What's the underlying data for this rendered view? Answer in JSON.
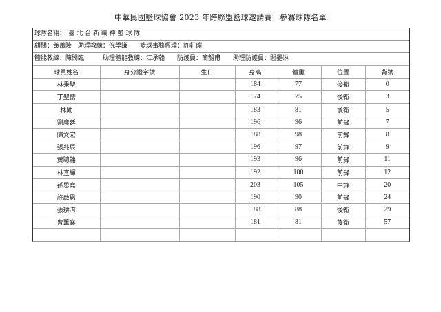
{
  "title": "中華民國籃球協會 2023 年跨聯盟籃球邀請賽　參賽球隊名單",
  "team_line": "球隊名稱：　臺 北 台 新 戰 神 籃 球 隊",
  "staff_line1": "顧問：黃萬隆　助理教練：倪學謙　　籃球事務經理：許軒瑜",
  "staff_line2": "體能教練：陳閔臨　　　助理體能教練：江承翰　　防護員：簡韶甫　　助理防護員：閻晏淋",
  "headers": [
    "球員姓名",
    "身分證字號",
    "生日",
    "身高",
    "體重",
    "位置",
    "背號"
  ],
  "players": [
    [
      "林秉聖",
      "",
      "",
      "184",
      "77",
      "後衛",
      "0"
    ],
    [
      "丁聖儒",
      "",
      "",
      "174",
      "75",
      "後衛",
      "3"
    ],
    [
      "林勵",
      "",
      "",
      "183",
      "81",
      "後衛",
      "5"
    ],
    [
      "劉彥廷",
      "",
      "",
      "196",
      "96",
      "前鋒",
      "7"
    ],
    [
      "陳文宏",
      "",
      "",
      "188",
      "98",
      "前鋒",
      "8"
    ],
    [
      "張兆辰",
      "",
      "",
      "196",
      "97",
      "前鋒",
      "9"
    ],
    [
      "黃聰翰",
      "",
      "",
      "193",
      "96",
      "前鋒",
      "11"
    ],
    [
      "林宜輝",
      "",
      "",
      "192",
      "100",
      "前鋒",
      "12"
    ],
    [
      "孫思堯",
      "",
      "",
      "203",
      "105",
      "中鋒",
      "20"
    ],
    [
      "許啟恩",
      "",
      "",
      "190",
      "90",
      "前鋒",
      "24"
    ],
    [
      "張耕淯",
      "",
      "",
      "188",
      "88",
      "後衛",
      "29"
    ],
    [
      "曹薰襄",
      "",
      "",
      "181",
      "81",
      "後衛",
      "57"
    ],
    [
      "",
      "",
      "",
      "",
      "",
      "",
      ""
    ]
  ]
}
